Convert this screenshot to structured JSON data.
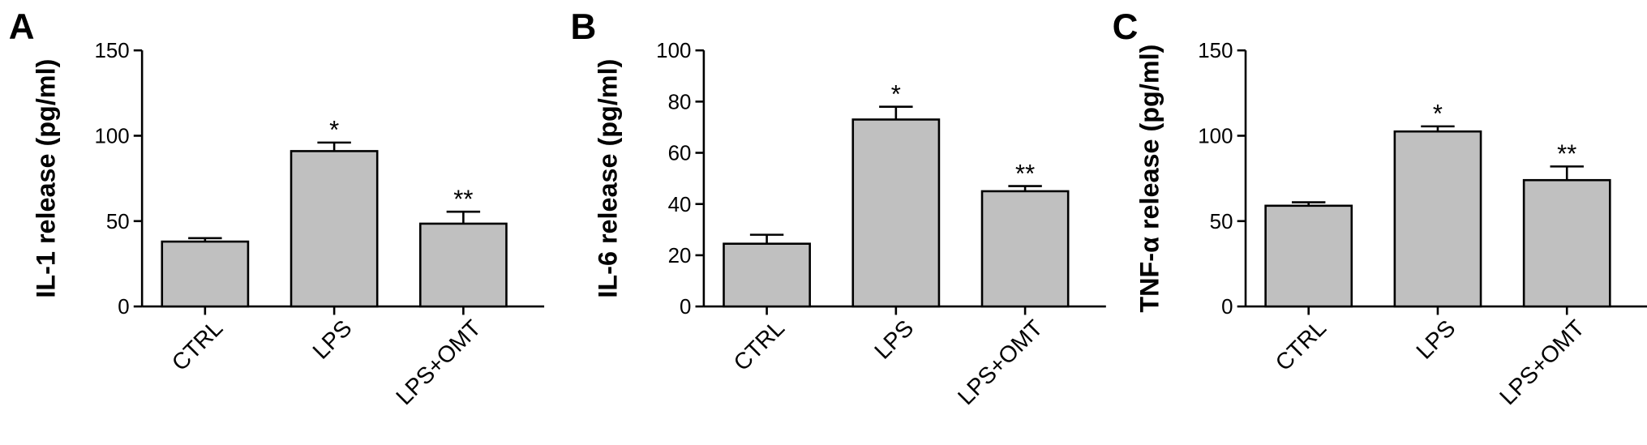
{
  "chart_data": [
    {
      "type": "bar",
      "panel": "A",
      "y_label": "IL-1 release (pg/ml)",
      "categories": [
        "CTRL",
        "LPS",
        "LPS+OMT"
      ],
      "values": [
        38,
        91,
        48.5
      ],
      "errors": [
        2,
        5,
        7
      ],
      "annotations": [
        null,
        "*",
        "**"
      ],
      "color": "#c0c0c0",
      "ylim": [
        0,
        150
      ],
      "yticks": [
        0,
        50,
        100,
        150
      ]
    },
    {
      "type": "bar",
      "panel": "B",
      "y_label": "IL-6 release (pg/ml)",
      "categories": [
        "CTRL",
        "LPS",
        "LPS+OMT"
      ],
      "values": [
        24.5,
        73,
        45
      ],
      "errors": [
        3.5,
        5,
        2
      ],
      "annotations": [
        null,
        "*",
        "**"
      ],
      "color": "#c0c0c0",
      "ylim": [
        0,
        100
      ],
      "yticks": [
        0,
        20,
        40,
        60,
        80,
        100
      ]
    },
    {
      "type": "bar",
      "panel": "C",
      "y_label": "TNF-α release (pg/ml)",
      "categories": [
        "CTRL",
        "LPS",
        "LPS+OMT"
      ],
      "values": [
        59,
        102.5,
        74
      ],
      "errors": [
        2,
        3,
        8
      ],
      "annotations": [
        null,
        "*",
        "**"
      ],
      "color": "#c0c0c0",
      "ylim": [
        0,
        150
      ],
      "yticks": [
        0,
        50,
        100,
        150
      ]
    }
  ]
}
